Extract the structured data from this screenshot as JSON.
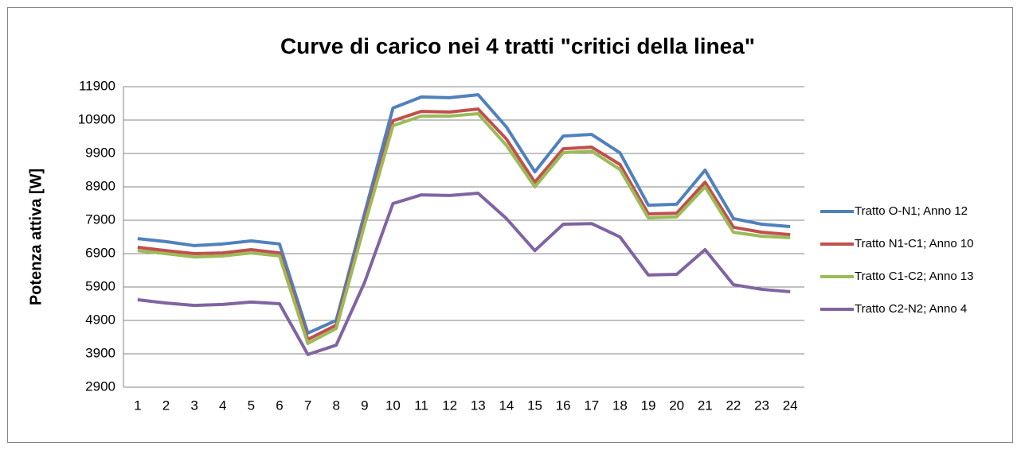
{
  "chart_data": {
    "type": "line",
    "title": "Curve di carico nei 4 tratti \"critici della linea\"",
    "y_label": "Potenza attiva [W]",
    "categories": [
      "1",
      "2",
      "3",
      "4",
      "5",
      "6",
      "7",
      "8",
      "9",
      "10",
      "11",
      "12",
      "13",
      "14",
      "15",
      "16",
      "17",
      "18",
      "19",
      "20",
      "21",
      "22",
      "23",
      "24"
    ],
    "series": [
      {
        "name": "Tratto O-N1; Anno 12",
        "color": "#4f81bd",
        "values": [
          7350,
          7260,
          7140,
          7190,
          7280,
          7190,
          4520,
          4900,
          8110,
          11260,
          11590,
          11570,
          11660,
          10690,
          9350,
          10420,
          10470,
          9920,
          8350,
          8380,
          9400,
          7950,
          7780,
          7710
        ]
      },
      {
        "name": "Tratto N1-C1; Anno 10",
        "color": "#c0504d",
        "values": [
          7090,
          6990,
          6900,
          6920,
          7020,
          6920,
          4330,
          4760,
          7880,
          10880,
          11160,
          11140,
          11230,
          10330,
          9040,
          10040,
          10090,
          9570,
          8090,
          8110,
          9040,
          7690,
          7540,
          7470
        ]
      },
      {
        "name": "Tratto C1-C2; Anno 13",
        "color": "#9bbb59",
        "values": [
          6990,
          6900,
          6800,
          6830,
          6920,
          6830,
          4210,
          4660,
          7760,
          10730,
          11020,
          11020,
          11090,
          10140,
          8900,
          9920,
          9970,
          9420,
          7970,
          8000,
          8900,
          7540,
          7420,
          7380
        ]
      },
      {
        "name": "Tratto C2-N2; Anno 4",
        "color": "#8064a2",
        "values": [
          5520,
          5420,
          5350,
          5380,
          5450,
          5400,
          3880,
          4160,
          6040,
          8400,
          8660,
          8640,
          8710,
          7950,
          6990,
          7780,
          7800,
          7400,
          6260,
          6280,
          7020,
          5970,
          5830,
          5760
        ]
      }
    ],
    "ylim": [
      2900,
      11900
    ],
    "yticks": [
      2900,
      3900,
      4900,
      5900,
      6900,
      7900,
      8900,
      9900,
      10900,
      11900
    ],
    "grid": true,
    "legend": "right"
  }
}
